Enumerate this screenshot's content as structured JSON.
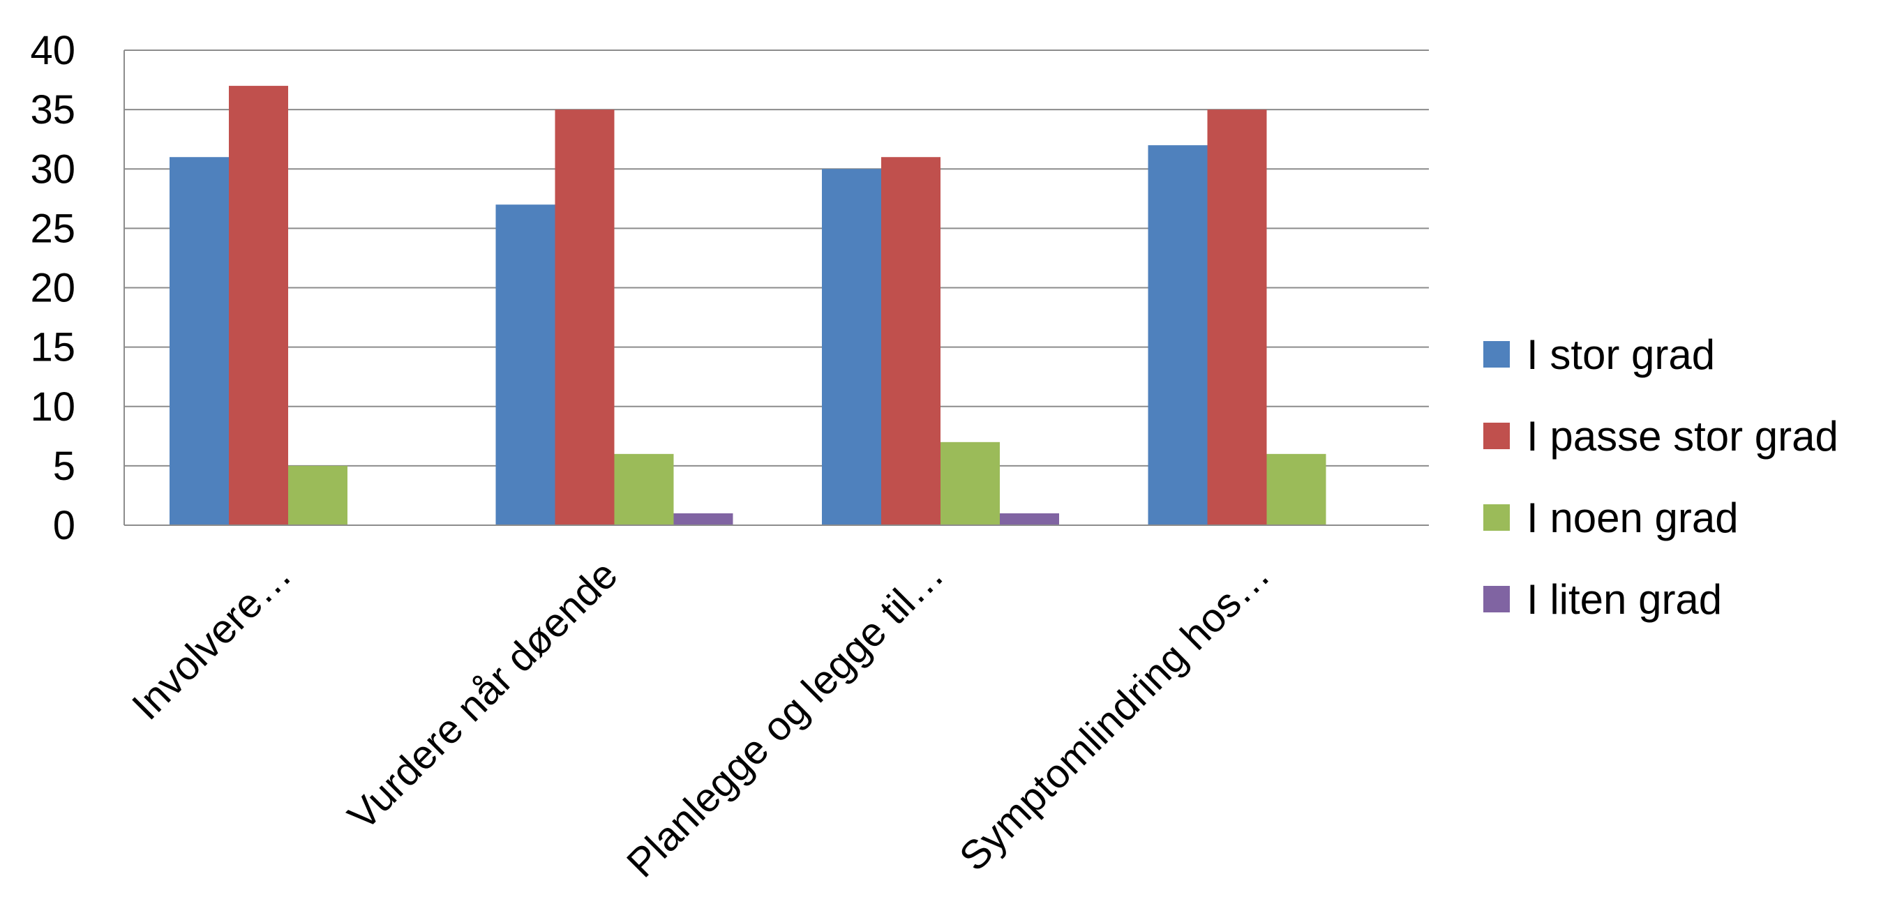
{
  "chart_data": {
    "type": "bar",
    "categories": [
      "Involvere…",
      "Vurdere når døende",
      "Planlegge og legge til…",
      "Symptomlindring hos…"
    ],
    "series": [
      {
        "name": "I stor grad",
        "color": "#4F81BD",
        "values": [
          31,
          27,
          30,
          32
        ]
      },
      {
        "name": "I passe stor grad",
        "color": "#C0504D",
        "values": [
          37,
          35,
          31,
          35
        ]
      },
      {
        "name": "I noen grad",
        "color": "#9BBB59",
        "values": [
          5,
          6,
          7,
          6
        ]
      },
      {
        "name": "I liten grad",
        "color": "#8064A2",
        "values": [
          0,
          1,
          1,
          0
        ]
      }
    ],
    "ylim": [
      0,
      40
    ],
    "yticks": [
      "0",
      "5",
      "10",
      "15",
      "20",
      "25",
      "30",
      "35",
      "40"
    ],
    "grid": true,
    "legend_position": "right",
    "title": "",
    "xlabel": "",
    "ylabel": ""
  }
}
